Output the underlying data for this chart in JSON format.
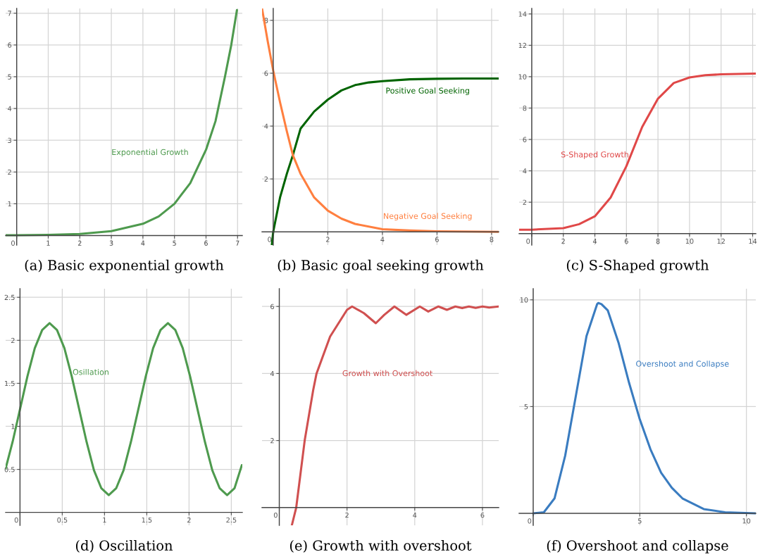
{
  "chart_data": [
    {
      "type": "line",
      "title": "(a) Basic exponential growth",
      "grid": true,
      "xlim": [
        -0.35,
        7.15
      ],
      "ylim": [
        -0.3,
        7.15
      ],
      "xticks": [
        0,
        1,
        2,
        3,
        4,
        5,
        6,
        7
      ],
      "yticks": [
        1,
        2,
        3,
        4,
        5,
        6,
        7
      ],
      "series": [
        {
          "name": "Exponential Growth",
          "color": "#4e9a4e",
          "x": [
            -0.35,
            0,
            1,
            2,
            3,
            4,
            4.5,
            5,
            5.5,
            6,
            6.3,
            6.6,
            6.8,
            6.98
          ],
          "values": [
            0.01,
            0.01,
            0.02,
            0.05,
            0.14,
            0.37,
            0.6,
            1.0,
            1.65,
            2.7,
            3.6,
            5.0,
            6.0,
            7.1
          ]
        }
      ]
    },
    {
      "type": "line",
      "title": "(b) Basic goal seeking growth",
      "grid": true,
      "xlim": [
        -0.41,
        8.26
      ],
      "ylim": [
        -0.5,
        8.45
      ],
      "xticks": [
        0,
        2,
        4,
        6,
        8
      ],
      "yticks": [
        2,
        4,
        6,
        8
      ],
      "series": [
        {
          "name": "Positive Goal Seeking",
          "color": "#006400",
          "x": [
            -0.05,
            0,
            0.25,
            0.5,
            0.72,
            1,
            1.5,
            2,
            2.5,
            3,
            3.5,
            4,
            5,
            6,
            7,
            8.26
          ],
          "values": [
            -0.5,
            0,
            1.3,
            2.2,
            2.9,
            3.9,
            4.55,
            5.0,
            5.35,
            5.55,
            5.65,
            5.7,
            5.77,
            5.79,
            5.8,
            5.8
          ]
        },
        {
          "name": "Negative Goal Seeking",
          "color": "#ff7f3f",
          "x": [
            -0.41,
            -0.2,
            0,
            0.25,
            0.5,
            0.72,
            1,
            1.5,
            2,
            2.5,
            3,
            4,
            5,
            6,
            8.26
          ],
          "values": [
            8.45,
            7.2,
            6.1,
            4.9,
            3.8,
            2.9,
            2.2,
            1.3,
            0.8,
            0.5,
            0.3,
            0.1,
            0.05,
            0.02,
            0.0
          ]
        }
      ]
    },
    {
      "type": "line",
      "title": "(c) S-Shaped growth",
      "grid": true,
      "xlim": [
        -0.8,
        14.2
      ],
      "ylim": [
        -0.73,
        14.35
      ],
      "xticks": [
        0,
        2,
        4,
        6,
        8,
        10,
        12,
        14
      ],
      "yticks": [
        2,
        4,
        6,
        8,
        10,
        12,
        14
      ],
      "series": [
        {
          "name": "S-Shaped Growth",
          "color": "#e04848",
          "x": [
            -0.8,
            0,
            2,
            3,
            4,
            5,
            6,
            7,
            8,
            9,
            10,
            11,
            12,
            14.2
          ],
          "values": [
            0.25,
            0.25,
            0.35,
            0.6,
            1.1,
            2.3,
            4.3,
            6.8,
            8.6,
            9.6,
            9.95,
            10.1,
            10.15,
            10.2
          ]
        }
      ]
    },
    {
      "type": "line",
      "title": "(d) Oscillation",
      "grid": true,
      "xlim": [
        -0.17,
        2.63
      ],
      "ylim": [
        -0.15,
        2.6
      ],
      "xticks": [
        0,
        0.5,
        1,
        1.5,
        2,
        2.5
      ],
      "yticks": [
        0.5,
        1,
        1.5,
        2,
        2.5
      ],
      "series": [
        {
          "name": "Osillation",
          "color": "#4e9a4e",
          "x": [
            -0.17,
            -0.0875,
            0,
            0.0875,
            0.175,
            0.2625,
            0.35,
            0.4375,
            0.525,
            0.6125,
            0.7,
            0.7875,
            0.875,
            0.9625,
            1.05,
            1.1375,
            1.225,
            1.3125,
            1.4,
            1.4875,
            1.575,
            1.6625,
            1.75,
            1.8375,
            1.925,
            2.0125,
            2.1,
            2.1875,
            2.275,
            2.3625,
            2.45,
            2.5375,
            2.625
          ],
          "values": [
            0.51,
            0.82,
            1.2,
            1.58,
            1.91,
            2.12,
            2.2,
            2.12,
            1.91,
            1.58,
            1.2,
            0.82,
            0.49,
            0.28,
            0.2,
            0.28,
            0.49,
            0.82,
            1.2,
            1.58,
            1.91,
            2.12,
            2.2,
            2.12,
            1.91,
            1.58,
            1.2,
            0.82,
            0.49,
            0.28,
            0.2,
            0.28,
            0.55
          ]
        }
      ]
    },
    {
      "type": "line",
      "title": "(e) Growth with overshoot",
      "grid": true,
      "xlim": [
        -0.51,
        6.48
      ],
      "ylim": [
        -0.53,
        6.53
      ],
      "xticks": [
        0,
        2,
        4,
        6
      ],
      "yticks": [
        2,
        4,
        6
      ],
      "series": [
        {
          "name": "Growth with Overshoot",
          "color": "#d05050",
          "x": [
            0.37,
            0.5,
            0.75,
            1.0,
            1.1,
            1.5,
            2.0,
            2.15,
            2.5,
            2.85,
            3.1,
            3.4,
            3.75,
            4.15,
            4.4,
            4.7,
            4.95,
            5.2,
            5.4,
            5.6,
            5.8,
            6.0,
            6.2,
            6.48
          ],
          "values": [
            -0.53,
            0,
            2,
            3.5,
            4,
            5.1,
            5.9,
            6.0,
            5.8,
            5.5,
            5.75,
            6.0,
            5.75,
            6.0,
            5.85,
            6.0,
            5.9,
            6.0,
            5.95,
            6.0,
            5.96,
            6.0,
            5.97,
            6.0
          ]
        }
      ]
    },
    {
      "type": "line",
      "title": "(f) Overshoot and collapse",
      "grid": true,
      "xlim": [
        -0.66,
        10.44
      ],
      "ylim": [
        -0.56,
        10.52
      ],
      "xticks": [
        0,
        5,
        10
      ],
      "yticks": [
        5,
        10
      ],
      "series": [
        {
          "name": "Overshoot and Collapse",
          "color": "#3a7cc0",
          "x": [
            0,
            0.5,
            1,
            1.5,
            2,
            2.5,
            3,
            3.05,
            3.2,
            3.5,
            4,
            4.5,
            5,
            5.5,
            6,
            6.5,
            7,
            8,
            9,
            10.44
          ],
          "values": [
            0,
            0.05,
            0.7,
            2.7,
            5.5,
            8.3,
            9.8,
            9.85,
            9.8,
            9.5,
            8.0,
            6.1,
            4.4,
            3.0,
            1.9,
            1.2,
            0.7,
            0.2,
            0.05,
            0
          ]
        }
      ]
    }
  ]
}
